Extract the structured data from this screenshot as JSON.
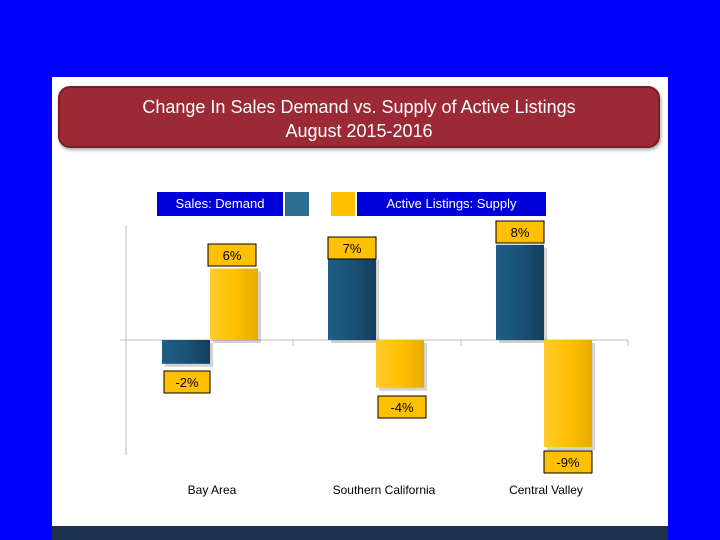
{
  "title": {
    "line1": "Change In Sales Demand vs. Supply of Active Listings",
    "line2": "August 2015-2016"
  },
  "legend": {
    "demand_label": "Sales: Demand",
    "supply_label": "Active Listings: Supply"
  },
  "colors": {
    "background": "#0000ff",
    "title_fill": "#9b2a36",
    "demand": "#1a5276",
    "supply": "#ffc000",
    "label_demand_bg": "#ffc000",
    "label_supply_bg": "#ffc000"
  },
  "chart_data": {
    "type": "bar",
    "title": "Change In Sales Demand vs. Supply of Active Listings August 2015-2016",
    "categories": [
      "Bay Area",
      "Southern California",
      "Central Valley"
    ],
    "series": [
      {
        "name": "Sales: Demand",
        "values": [
          -2,
          7,
          8
        ],
        "labels": [
          "-2%",
          "7%",
          "8%"
        ]
      },
      {
        "name": "Active Listings: Supply",
        "values": [
          6,
          -4,
          -9
        ],
        "labels": [
          "6%",
          "-4%",
          "-9%"
        ]
      }
    ],
    "xlabel": "",
    "ylabel": "",
    "ylim": [
      -10,
      10
    ],
    "unit": "%",
    "legend_position": "top"
  }
}
